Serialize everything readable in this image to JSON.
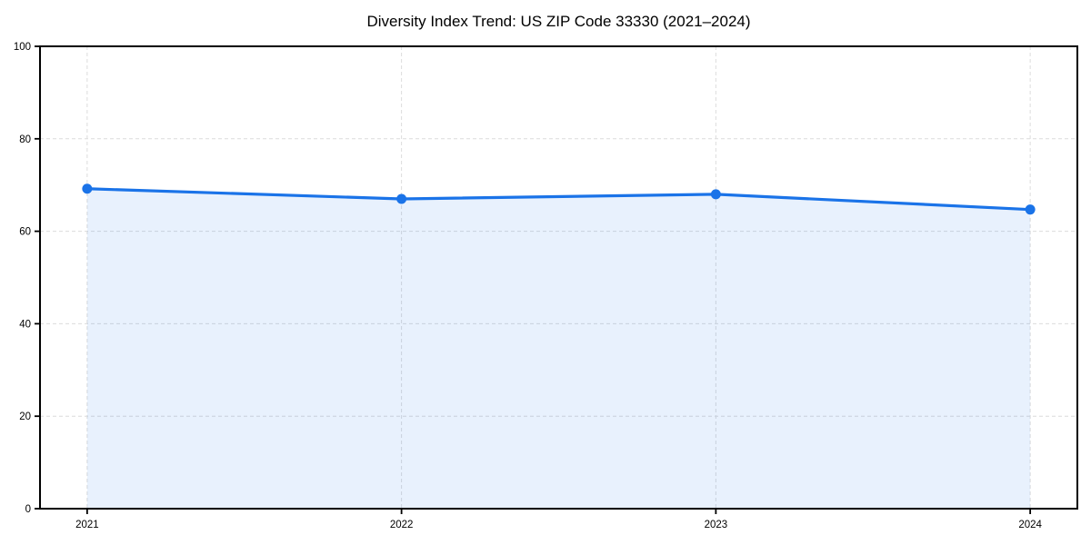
{
  "figure": {
    "background": "#ffffff"
  },
  "chart_data": {
    "type": "area",
    "title": "Diversity Index Trend: US ZIP Code 33330 (2021–2024)",
    "series_name": "Diversity Index",
    "categories": [
      2021,
      2022,
      2023,
      2024
    ],
    "values": [
      69.2,
      67.0,
      68.0,
      64.7
    ],
    "xlabel": "",
    "ylabel": "",
    "xticks": [
      2021,
      2022,
      2023,
      2024
    ],
    "yticks": [
      0,
      20,
      40,
      60,
      80,
      100
    ],
    "ylim": [
      0,
      100
    ],
    "xlim": [
      2020.85,
      2024.15
    ],
    "grid": true,
    "grid_style": "dashed",
    "legend_position": "none",
    "markers": true,
    "colors": {
      "line": "#1a73e8",
      "marker": "#1a73e8",
      "fill": "#1a73e8",
      "fill_opacity": 0.1,
      "grid": "#dcdcdc",
      "axis": "#000000",
      "tick_label": "#000000",
      "title": "#000000",
      "plot_background": "#ffffff"
    }
  }
}
